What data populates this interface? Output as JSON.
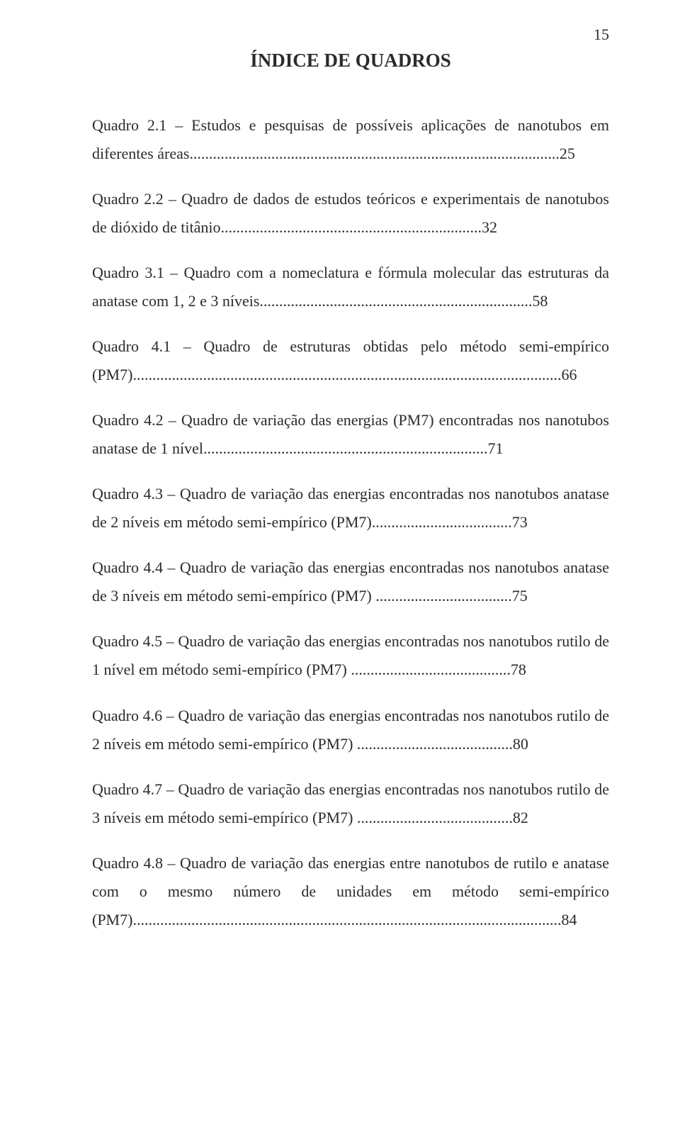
{
  "page": {
    "number": "15",
    "title": "ÍNDICE DE QUADROS"
  },
  "entries": [
    {
      "text": "Quadro 2.1 – Estudos e pesquisas de possíveis aplicações de nanotubos em diferentes áreas...............................................................................................25"
    },
    {
      "text": "Quadro 2.2 – Quadro de dados de estudos teóricos e experimentais de nanotubos de dióxido de titânio...................................................................32"
    },
    {
      "text": "Quadro 3.1 – Quadro com a nomeclatura e fórmula molecular das estruturas da anatase com 1, 2 e 3 níveis......................................................................58"
    },
    {
      "text": "Quadro 4.1 – Quadro de estruturas obtidas pelo método semi-empírico (PM7)..............................................................................................................66"
    },
    {
      "text": "Quadro 4.2 – Quadro de variação das energias (PM7) encontradas nos nanotubos anatase de 1 nível.........................................................................71"
    },
    {
      "text": "Quadro 4.3 – Quadro de variação das energias encontradas nos nanotubos anatase de 2 níveis em método semi-empírico (PM7)....................................73"
    },
    {
      "text": "Quadro 4.4 – Quadro de variação das energias encontradas nos nanotubos anatase de 3 níveis em método semi-empírico (PM7) ...................................75"
    },
    {
      "text": "Quadro 4.5 – Quadro de variação das energias encontradas nos nanotubos rutilo de 1 nível em método semi-empírico (PM7) .........................................78"
    },
    {
      "text": "Quadro 4.6 – Quadro de variação das energias encontradas nos nanotubos rutilo de 2 níveis em método semi-empírico (PM7) ........................................80"
    },
    {
      "text": "Quadro 4.7 – Quadro de variação das energias encontradas nos nanotubos rutilo de 3 níveis em método semi-empírico (PM7) ........................................82"
    },
    {
      "text": "Quadro 4.8 – Quadro de variação das energias entre nanotubos de rutilo e anatase com o mesmo número de unidades em método semi-empírico (PM7)..............................................................................................................84"
    }
  ],
  "colors": {
    "background": "#ffffff",
    "text": "#2b2b2b"
  },
  "typography": {
    "body_fontsize_pt": 12,
    "title_fontsize_pt": 14,
    "font_family": "Times New Roman"
  }
}
